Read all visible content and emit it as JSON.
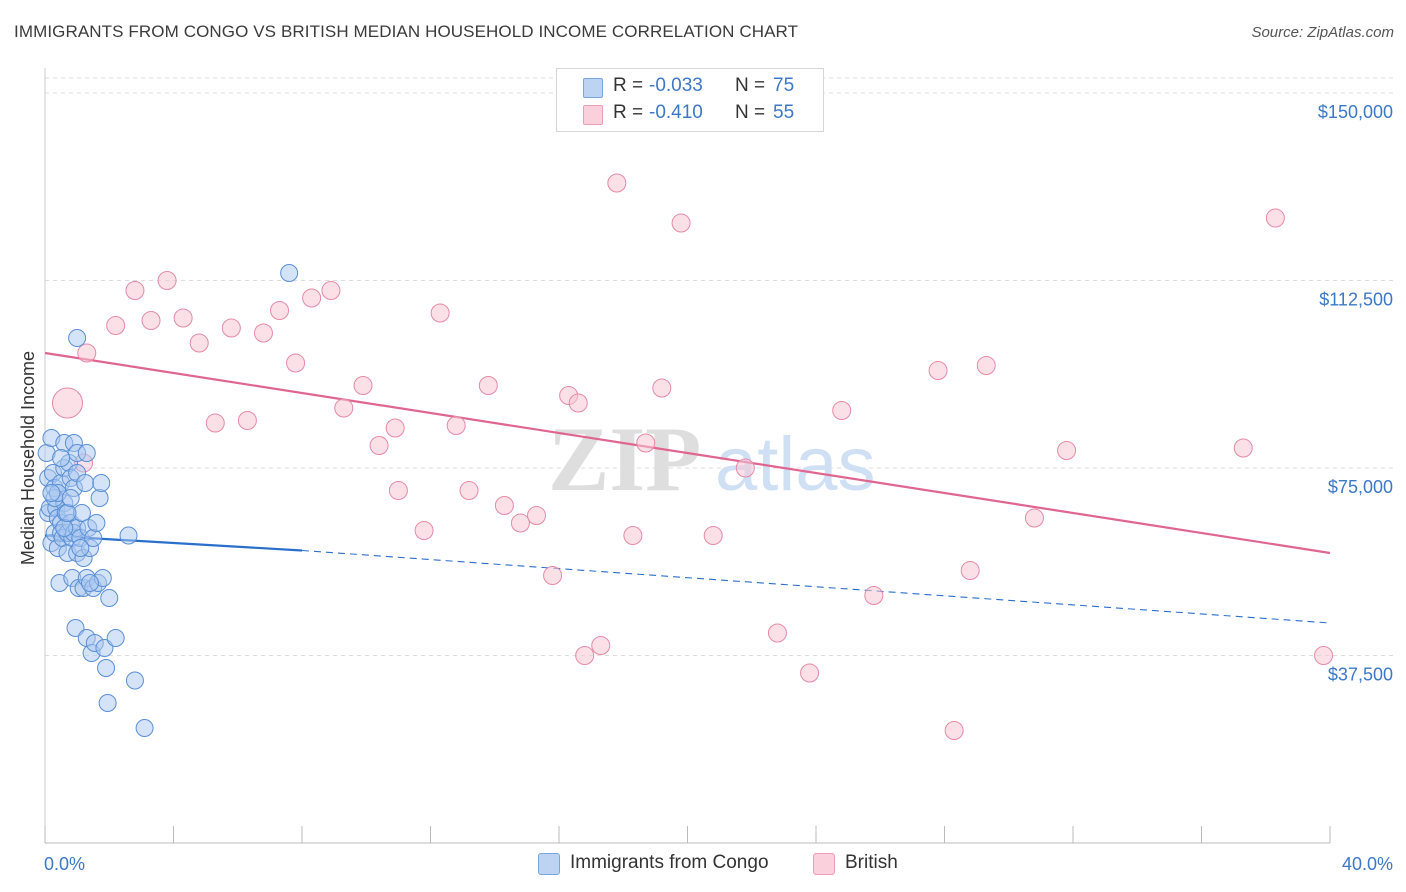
{
  "title": "IMMIGRANTS FROM CONGO VS BRITISH MEDIAN HOUSEHOLD INCOME CORRELATION CHART",
  "source": "Source: ZipAtlas.com",
  "watermark": {
    "zip": "ZIP",
    "atlas": "atlas"
  },
  "legend": {
    "rows": [
      {
        "r_label": "R =",
        "r_value": "-0.033",
        "n_label": "N =",
        "n_value": "75"
      },
      {
        "r_label": "R =",
        "r_value": "-0.410",
        "n_label": "N =",
        "n_value": "55"
      }
    ]
  },
  "bottom_legend": {
    "series1": "Immigrants from Congo",
    "series2": "British"
  },
  "colors": {
    "congo_fill": "#a9c8ef",
    "congo_stroke": "#5a8fd6",
    "congo_line": "#2a6fcc",
    "british_fill": "#f8c6d5",
    "british_stroke": "#e58aa8",
    "british_line": "#e0658f",
    "axis_label": "#3c78c8",
    "grid": "#dcdcdc"
  },
  "chart_data": {
    "type": "scatter",
    "title": "IMMIGRANTS FROM CONGO VS BRITISH MEDIAN HOUSEHOLD INCOME CORRELATION CHART",
    "xlabel": "",
    "ylabel": "Median Household Income",
    "xlim": [
      0,
      40
    ],
    "ylim": [
      0,
      153000
    ],
    "x_tick_labels": [
      "0.0%",
      "40.0%"
    ],
    "y_ticks": [
      37500,
      75000,
      112500,
      150000
    ],
    "y_tick_labels": [
      "$37,500",
      "$75,000",
      "$112,500",
      "$150,000"
    ],
    "grid": "horizontal dashed",
    "series": [
      {
        "name": "Immigrants from Congo",
        "R": -0.033,
        "N": 75,
        "trend": {
          "x": [
            0,
            8
          ],
          "y": [
            61500,
            58500
          ],
          "dashed_extension": {
            "x": [
              8,
              40
            ],
            "y": [
              58500,
              44000
            ]
          }
        },
        "points": [
          [
            0.05,
            78000
          ],
          [
            0.1,
            73000
          ],
          [
            0.1,
            66000
          ],
          [
            0.15,
            67000
          ],
          [
            0.2,
            60000
          ],
          [
            0.2,
            81000
          ],
          [
            0.25,
            74000
          ],
          [
            0.3,
            71000
          ],
          [
            0.3,
            62000
          ],
          [
            0.35,
            67000
          ],
          [
            0.4,
            65000
          ],
          [
            0.4,
            59000
          ],
          [
            0.45,
            52000
          ],
          [
            0.5,
            72000
          ],
          [
            0.5,
            64000
          ],
          [
            0.5,
            62000
          ],
          [
            0.55,
            61000
          ],
          [
            0.6,
            80000
          ],
          [
            0.6,
            75000
          ],
          [
            0.6,
            68000
          ],
          [
            0.65,
            66000
          ],
          [
            0.7,
            62000
          ],
          [
            0.7,
            58000
          ],
          [
            0.75,
            76000
          ],
          [
            0.8,
            73000
          ],
          [
            0.8,
            64000
          ],
          [
            0.85,
            61000
          ],
          [
            0.85,
            53000
          ],
          [
            0.9,
            80000
          ],
          [
            0.9,
            71000
          ],
          [
            0.9,
            62000
          ],
          [
            0.95,
            43000
          ],
          [
            1.0,
            78000
          ],
          [
            1.0,
            74000
          ],
          [
            1.0,
            63000
          ],
          [
            1.0,
            58000
          ],
          [
            1.05,
            51000
          ],
          [
            1.1,
            61000
          ],
          [
            1.15,
            66000
          ],
          [
            1.2,
            57000
          ],
          [
            1.2,
            51000
          ],
          [
            1.25,
            72000
          ],
          [
            1.3,
            53000
          ],
          [
            1.3,
            41000
          ],
          [
            1.35,
            63000
          ],
          [
            1.4,
            59000
          ],
          [
            1.45,
            38000
          ],
          [
            1.5,
            61000
          ],
          [
            1.5,
            51000
          ],
          [
            1.55,
            40000
          ],
          [
            1.6,
            64000
          ],
          [
            1.65,
            52000
          ],
          [
            1.7,
            69000
          ],
          [
            1.75,
            72000
          ],
          [
            1.8,
            53000
          ],
          [
            1.85,
            39000
          ],
          [
            1.9,
            35000
          ],
          [
            1.95,
            28000
          ],
          [
            2.0,
            49000
          ],
          [
            2.2,
            41000
          ],
          [
            0.3,
            69000
          ],
          [
            0.4,
            70000
          ],
          [
            0.6,
            63000
          ],
          [
            0.7,
            66000
          ],
          [
            1.1,
            59000
          ],
          [
            1.3,
            78000
          ],
          [
            1.0,
            101000
          ],
          [
            2.6,
            61500
          ],
          [
            2.8,
            32500
          ],
          [
            3.1,
            23000
          ],
          [
            7.6,
            114000
          ],
          [
            0.2,
            70000
          ],
          [
            0.5,
            77000
          ],
          [
            0.8,
            69000
          ],
          [
            1.4,
            52000
          ]
        ]
      },
      {
        "name": "British",
        "R": -0.41,
        "N": 55,
        "trend": {
          "x": [
            0,
            40
          ],
          "y": [
            98000,
            58000
          ]
        },
        "points": [
          [
            0.7,
            88000
          ],
          [
            1.3,
            98000
          ],
          [
            2.2,
            103500
          ],
          [
            2.8,
            110500
          ],
          [
            3.3,
            104500
          ],
          [
            3.8,
            112500
          ],
          [
            4.3,
            105000
          ],
          [
            4.8,
            100000
          ],
          [
            5.3,
            84000
          ],
          [
            5.8,
            103000
          ],
          [
            6.3,
            84500
          ],
          [
            6.8,
            102000
          ],
          [
            7.3,
            106500
          ],
          [
            7.8,
            96000
          ],
          [
            8.3,
            109000
          ],
          [
            8.9,
            110500
          ],
          [
            9.3,
            87000
          ],
          [
            9.9,
            91500
          ],
          [
            10.4,
            79500
          ],
          [
            10.9,
            83000
          ],
          [
            11.0,
            70500
          ],
          [
            11.8,
            62500
          ],
          [
            12.3,
            106000
          ],
          [
            12.8,
            83500
          ],
          [
            13.2,
            70500
          ],
          [
            13.8,
            91500
          ],
          [
            14.3,
            67500
          ],
          [
            14.8,
            64000
          ],
          [
            15.3,
            65500
          ],
          [
            15.8,
            53500
          ],
          [
            16.3,
            89500
          ],
          [
            16.8,
            37500
          ],
          [
            17.3,
            39500
          ],
          [
            17.8,
            132000
          ],
          [
            18.3,
            61500
          ],
          [
            18.7,
            80000
          ],
          [
            19.2,
            91000
          ],
          [
            19.8,
            124000
          ],
          [
            20.8,
            61500
          ],
          [
            21.8,
            75000
          ],
          [
            22.8,
            42000
          ],
          [
            23.8,
            34000
          ],
          [
            24.8,
            86500
          ],
          [
            25.8,
            49500
          ],
          [
            27.8,
            94500
          ],
          [
            28.3,
            22500
          ],
          [
            28.8,
            54500
          ],
          [
            29.3,
            95500
          ],
          [
            30.8,
            65000
          ],
          [
            31.8,
            78500
          ],
          [
            37.3,
            79000
          ],
          [
            38.3,
            125000
          ],
          [
            39.8,
            37500
          ],
          [
            16.6,
            88000
          ],
          [
            1.2,
            76000
          ]
        ]
      }
    ]
  }
}
